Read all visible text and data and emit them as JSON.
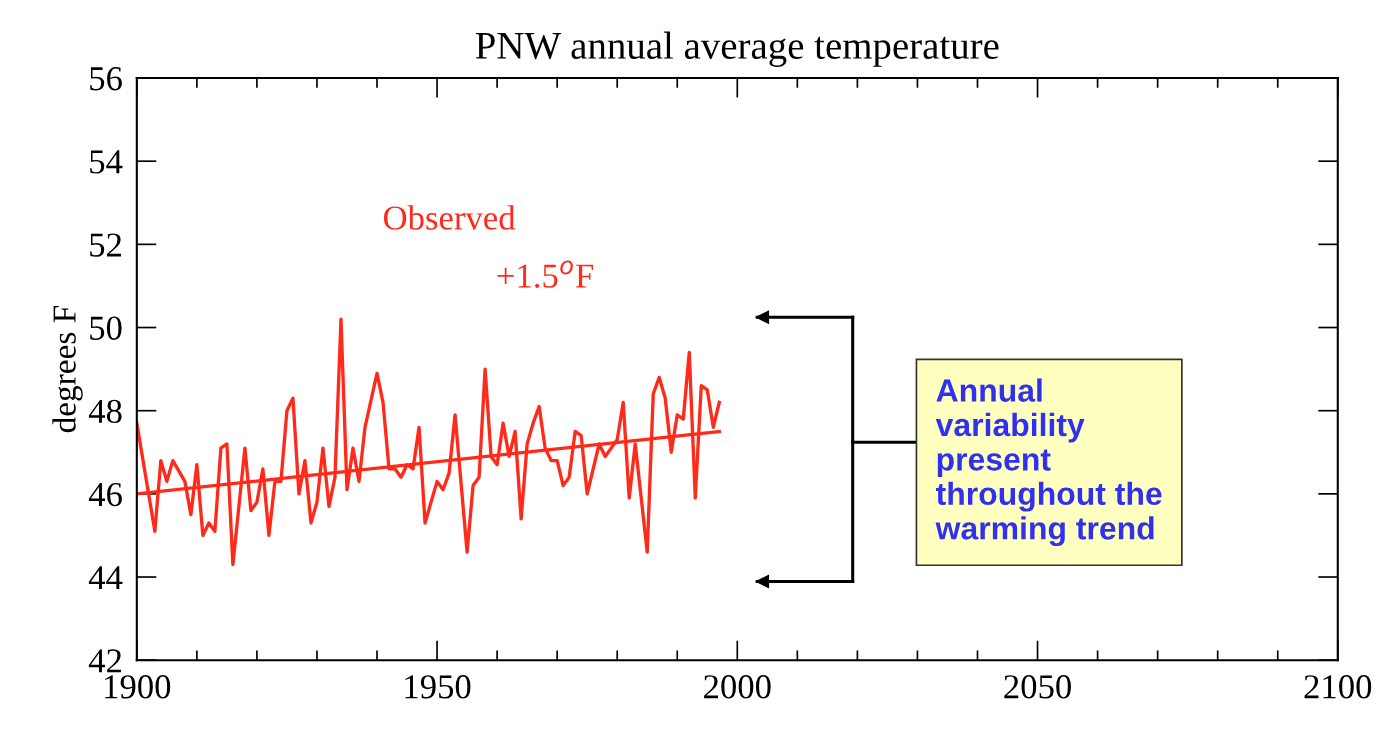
{
  "chart_data": {
    "type": "line",
    "title": "PNW annual average temperature",
    "ylabel": "degrees F",
    "xlim": [
      1900,
      2100
    ],
    "ylim": [
      42,
      56
    ],
    "xticks": [
      1900,
      {
        "value": 1910,
        "label": null
      },
      {
        "value": 1920,
        "label": null
      },
      {
        "value": 1930,
        "label": null
      },
      {
        "value": 1940,
        "label": null
      },
      1950,
      {
        "value": 1960,
        "label": null
      },
      {
        "value": 1970,
        "label": null
      },
      {
        "value": 1980,
        "label": null
      },
      {
        "value": 1990,
        "label": null
      },
      2000,
      {
        "value": 2010,
        "label": null
      },
      {
        "value": 2020,
        "label": null
      },
      {
        "value": 2030,
        "label": null
      },
      {
        "value": 2040,
        "label": null
      },
      2050,
      {
        "value": 2060,
        "label": null
      },
      {
        "value": 2070,
        "label": null
      },
      {
        "value": 2080,
        "label": null
      },
      {
        "value": 2090,
        "label": null
      },
      2100
    ],
    "yticks": [
      42,
      44,
      46,
      48,
      50,
      52,
      54,
      56
    ],
    "grid": false,
    "legend": false,
    "marker": "none",
    "line_style": "solid",
    "series": [
      {
        "name": "Observed",
        "color": "#ff2a1a",
        "x": [
          1900,
          1903,
          1904,
          1905,
          1906,
          1908,
          1909,
          1910,
          1911,
          1912,
          1913,
          1914,
          1915,
          1916,
          1918,
          1919,
          1920,
          1921,
          1922,
          1923,
          1924,
          1925,
          1926,
          1927,
          1928,
          1929,
          1930,
          1931,
          1932,
          1933,
          1934,
          1935,
          1936,
          1937,
          1938,
          1940,
          1941,
          1942,
          1943,
          1944,
          1945,
          1946,
          1947,
          1948,
          1950,
          1951,
          1952,
          1953,
          1955,
          1956,
          1957,
          1958,
          1959,
          1960,
          1961,
          1962,
          1963,
          1964,
          1965,
          1966,
          1967,
          1968,
          1969,
          1970,
          1971,
          1972,
          1973,
          1974,
          1975,
          1976,
          1977,
          1978,
          1979,
          1980,
          1981,
          1982,
          1983,
          1985,
          1986,
          1987,
          1988,
          1989,
          1990,
          1991,
          1992,
          1993,
          1994,
          1995,
          1996,
          1997
        ],
        "values": [
          47.7,
          45.1,
          46.8,
          46.3,
          46.8,
          46.3,
          45.5,
          46.7,
          45.0,
          45.3,
          45.1,
          47.1,
          47.2,
          44.3,
          47.1,
          45.6,
          45.8,
          46.6,
          45.0,
          46.3,
          46.3,
          48.0,
          48.3,
          46.0,
          46.8,
          45.3,
          45.8,
          47.1,
          45.7,
          46.4,
          50.2,
          46.1,
          47.1,
          46.3,
          47.6,
          48.9,
          48.2,
          46.6,
          46.6,
          46.4,
          46.7,
          46.6,
          47.6,
          45.3,
          46.3,
          46.1,
          46.5,
          47.9,
          44.6,
          46.2,
          46.4,
          49.0,
          46.9,
          46.7,
          47.7,
          46.9,
          47.5,
          45.4,
          47.2,
          47.7,
          48.1,
          47.1,
          46.8,
          46.8,
          46.2,
          46.4,
          47.5,
          47.4,
          46.0,
          46.6,
          47.2,
          46.9,
          47.1,
          47.3,
          48.2,
          45.9,
          47.2,
          44.6,
          48.4,
          48.8,
          48.3,
          47.0,
          47.9,
          47.8,
          49.4,
          45.9,
          48.6,
          48.5,
          47.6,
          48.2
        ]
      },
      {
        "type": "line",
        "color": "#ff2a1a",
        "x": [
          1900,
          1997
        ],
        "values": [
          46.0,
          47.5
        ]
      }
    ],
    "annotations": [
      "+1.5$^{o}$F",
      "Annual\nvariability\npresent\nthroughout the\nwarming trend"
    ]
  }
}
